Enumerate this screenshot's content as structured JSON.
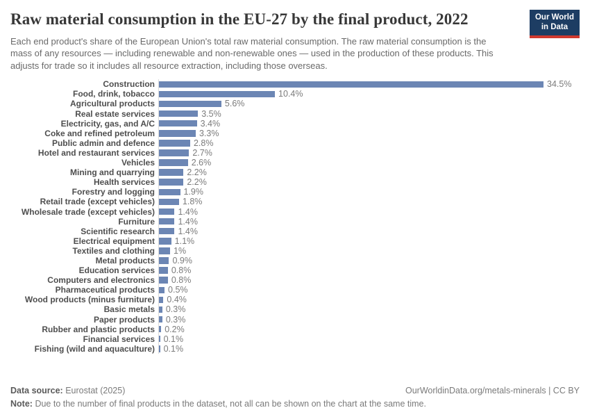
{
  "header": {
    "title": "Raw material consumption in the EU-27 by the final product, 2022",
    "subtitle": "Each end product's share of the European Union's total raw material consumption. The raw material consumption is the mass of any resources — including renewable and non-renewable ones — used in the production of these products. This adjusts for trade so it includes all resource extraction, including those overseas.",
    "logo_line1": "Our World",
    "logo_line2": "in Data"
  },
  "chart_data": {
    "type": "bar",
    "orientation": "horizontal",
    "unit": "%",
    "title": "Raw material consumption in the EU-27 by the final product, 2022",
    "xlim": [
      0,
      34.5
    ],
    "grid": false,
    "bar_color": "#6c86b4",
    "categories": [
      "Construction",
      "Food, drink, tobacco",
      "Agricultural products",
      "Real estate services",
      "Electricity, gas, and A/C",
      "Coke and refined petroleum",
      "Public admin and defence",
      "Hotel and restaurant services",
      "Vehicles",
      "Mining and quarrying",
      "Health services",
      "Forestry and logging",
      "Retail trade (except vehicles)",
      "Wholesale trade (except vehicles)",
      "Furniture",
      "Scientific research",
      "Electrical equipment",
      "Textiles and clothing",
      "Metal products",
      "Education services",
      "Computers and electronics",
      "Pharmaceutical products",
      "Wood products (minus furniture)",
      "Basic metals",
      "Paper products",
      "Rubber and plastic products",
      "Financial services",
      "Fishing (wild and aquaculture)"
    ],
    "values": [
      34.5,
      10.4,
      5.6,
      3.5,
      3.4,
      3.3,
      2.8,
      2.7,
      2.6,
      2.2,
      2.2,
      1.9,
      1.8,
      1.4,
      1.4,
      1.4,
      1.1,
      1,
      0.9,
      0.8,
      0.8,
      0.5,
      0.4,
      0.3,
      0.3,
      0.2,
      0.1,
      0.1
    ],
    "value_labels": [
      "34.5%",
      "10.4%",
      "5.6%",
      "3.5%",
      "3.4%",
      "3.3%",
      "2.8%",
      "2.7%",
      "2.6%",
      "2.2%",
      "2.2%",
      "1.9%",
      "1.8%",
      "1.4%",
      "1.4%",
      "1.4%",
      "1.1%",
      "1%",
      "0.9%",
      "0.8%",
      "0.8%",
      "0.5%",
      "0.4%",
      "0.3%",
      "0.3%",
      "0.2%",
      "0.1%",
      "0.1%"
    ]
  },
  "footer": {
    "source_label": "Data source:",
    "source_value": "Eurostat (2025)",
    "attribution": "OurWorldinData.org/metals-minerals | CC BY",
    "note_label": "Note:",
    "note_text": "Due to the number of final products in the dataset, not all can be shown on the chart at the same time."
  },
  "colors": {
    "bar": "#6c86b4",
    "logo_background": "#1d3d63",
    "logo_stripe": "#d0392f"
  }
}
